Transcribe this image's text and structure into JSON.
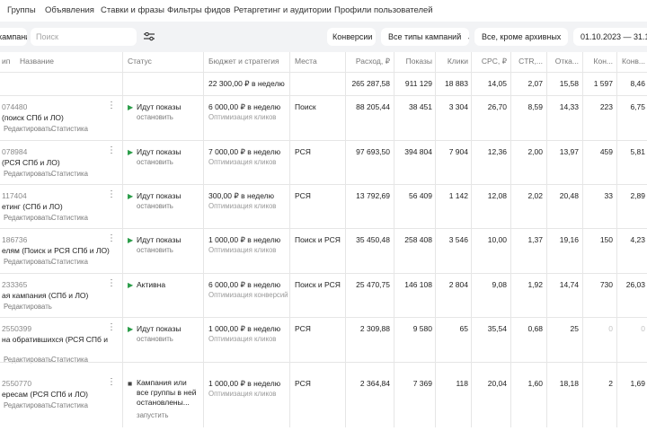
{
  "top_nav": [
    "Группы",
    "Объявления",
    "Ставки и фразы",
    "Фильтры фидов",
    "Ретаргетинг и аудитории",
    "Профили пользователей"
  ],
  "filters": {
    "campaign_button": "кампанию",
    "search_placeholder": "Поиск",
    "conversions": "Конверсии",
    "campaign_types": "Все типы кампаний",
    "archive": "Все, кроме архивных",
    "date_range": "01.10.2023 — 31.12."
  },
  "columns": {
    "type": "ип",
    "name": "Название",
    "status": "Статус",
    "budget": "Бюджет и стратегия",
    "places": "Места",
    "spend": "Расход, ₽",
    "impressions": "Показы",
    "clicks": "Клики",
    "cpc": "CPC, ₽",
    "ctr": "CTR,...",
    "bounce": "Отка...",
    "conversions": "Кон...",
    "conv_rate": "Конв..."
  },
  "totals": {
    "budget": "22 300,00 ₽ в неделю",
    "spend": "265 287,58",
    "impressions": "911 129",
    "clicks": "18 883",
    "cpc": "14,05",
    "ctr": "2,07",
    "bounce": "15,58",
    "conversions": "1 597",
    "conv_rate": "8,46"
  },
  "rows": [
    {
      "id": "074480",
      "name": "(поиск СПб и ЛО)",
      "edit": "Редактировать",
      "stats": "Статистика",
      "status_icon": "play-icon",
      "status": "Идут показы",
      "status_action": "остановить",
      "budget": "6 000,00 ₽ в неделю",
      "strategy": "Оптимизация кликов",
      "places": "Поиск",
      "spend": "88 205,44",
      "impressions": "38 451",
      "clicks": "3 304",
      "cpc": "26,70",
      "ctr": "8,59",
      "bounce": "14,33",
      "conversions": "223",
      "conv_rate": "6,75"
    },
    {
      "id": "078984",
      "name": "(РСЯ СПб и ЛО)",
      "edit": "Редактировать",
      "stats": "Статистика",
      "status_icon": "play-icon",
      "status": "Идут показы",
      "status_action": "остановить",
      "budget": "7 000,00 ₽ в неделю",
      "strategy": "Оптимизация кликов",
      "places": "РСЯ",
      "spend": "97 693,50",
      "impressions": "394 804",
      "clicks": "7 904",
      "cpc": "12,36",
      "ctr": "2,00",
      "bounce": "13,97",
      "conversions": "459",
      "conv_rate": "5,81"
    },
    {
      "id": "117404",
      "name": "етинг (СПб и ЛО)",
      "edit": "Редактировать",
      "stats": "Статистика",
      "status_icon": "play-icon",
      "status": "Идут показы",
      "status_action": "остановить",
      "budget": "300,00 ₽ в неделю",
      "strategy": "Оптимизация кликов",
      "places": "РСЯ",
      "spend": "13 792,69",
      "impressions": "56 409",
      "clicks": "1 142",
      "cpc": "12,08",
      "ctr": "2,02",
      "bounce": "20,48",
      "conversions": "33",
      "conv_rate": "2,89"
    },
    {
      "id": "186736",
      "name": "елям (Поиск и РСЯ СПб и ЛО)",
      "edit": "Редактировать",
      "stats": "Статистика",
      "status_icon": "play-icon",
      "status": "Идут показы",
      "status_action": "остановить",
      "budget": "1 000,00 ₽ в неделю",
      "strategy": "Оптимизация кликов",
      "places": "Поиск и РСЯ",
      "spend": "35 450,48",
      "impressions": "258 408",
      "clicks": "3 546",
      "cpc": "10,00",
      "ctr": "1,37",
      "bounce": "19,16",
      "conversions": "150",
      "conv_rate": "4,23"
    },
    {
      "id": "233365",
      "name": "ая кампания (СПб и ЛО)",
      "edit": "Редактировать",
      "stats": "",
      "status_icon": "play-icon",
      "status": "Активна",
      "status_action": "",
      "budget": "6 000,00 ₽ в неделю",
      "strategy": "Оптимизация конверсий",
      "places": "Поиск и РСЯ",
      "spend": "25 470,75",
      "impressions": "146 108",
      "clicks": "2 804",
      "cpc": "9,08",
      "ctr": "1,92",
      "bounce": "14,74",
      "conversions": "730",
      "conv_rate": "26,03"
    },
    {
      "id": "2550399",
      "name": "на обратившихся (РСЯ СПб и",
      "edit": "Редактировать",
      "stats": "Статистика",
      "status_icon": "play-icon",
      "status": "Идут показы",
      "status_action": "остановить",
      "budget": "1 000,00 ₽ в неделю",
      "strategy": "Оптимизация кликов",
      "places": "РСЯ",
      "spend": "2 309,88",
      "impressions": "9 580",
      "clicks": "65",
      "cpc": "35,54",
      "ctr": "0,68",
      "bounce": "25",
      "conversions": "0",
      "conv_rate": "0"
    },
    {
      "id": "2550770",
      "name": "ересам (РСЯ СПб и ЛО)",
      "edit": "Редактировать",
      "stats": "Статистика",
      "status_icon": "stop-icon",
      "status": "Кампания или все группы в ней остановлены...",
      "status_action": "запустить",
      "budget": "1 000,00 ₽ в неделю",
      "strategy": "Оптимизация кликов",
      "places": "РСЯ",
      "spend": "2 364,84",
      "impressions": "7 369",
      "clicks": "118",
      "cpc": "20,04",
      "ctr": "1,60",
      "bounce": "18,18",
      "conversions": "2",
      "conv_rate": "1,69"
    }
  ],
  "colors": {
    "play": "#2b9d49",
    "filter_bg": "#f2f3f5",
    "divider": "#e6e6e6"
  }
}
